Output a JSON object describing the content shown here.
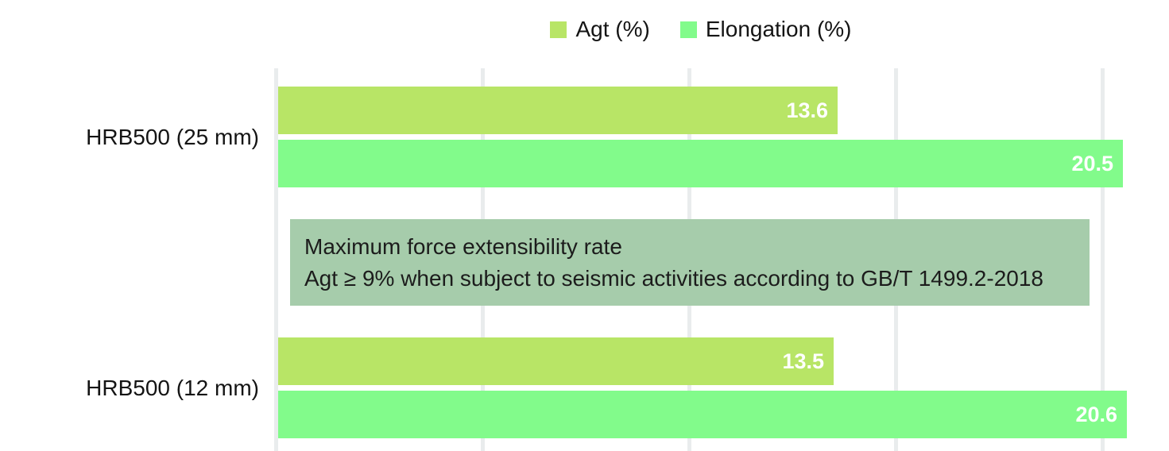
{
  "chart_data": {
    "type": "bar",
    "orientation": "horizontal",
    "title": "",
    "xlabel": "",
    "ylabel": "",
    "categories": [
      "HRB500 (25 mm)",
      "HRB500 (12 mm)"
    ],
    "series": [
      {
        "name": "Agt (%)",
        "color": "#b8e566",
        "values": [
          13.6,
          13.5
        ]
      },
      {
        "name": "Elongation (%)",
        "color": "#82fb8b",
        "values": [
          20.5,
          20.6
        ]
      }
    ],
    "xlim": [
      0,
      21.6
    ],
    "grid": true,
    "gridline_values": [
      0,
      5,
      10,
      15,
      20
    ],
    "tick_labels_visible": false,
    "legend_position": "top-center",
    "annotation": {
      "line1": "Maximum force extensibility rate",
      "line2": "Agt ≥ 9% when subject to seismic activities according to GB/T 1499.2-2018",
      "bg_color": "#a6ccab"
    }
  },
  "colors": {
    "agt_bar": "#b8e566",
    "elongation_bar": "#82fb8b",
    "annotation_bg": "#a6ccab",
    "gridline": "#e9eced",
    "text": "#141414",
    "bar_value_text": "#ffffff"
  }
}
